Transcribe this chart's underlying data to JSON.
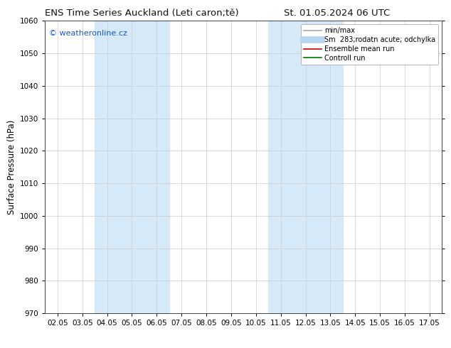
{
  "title_left": "ENS Time Series Auckland (Leti caron;tě)",
  "title_right": "St. 01.05.2024 06 UTC",
  "ylabel": "Surface Pressure (hPa)",
  "ylim": [
    970,
    1060
  ],
  "yticks": [
    970,
    980,
    990,
    1000,
    1010,
    1020,
    1030,
    1040,
    1050,
    1060
  ],
  "xlim_dates": [
    "02.05",
    "03.05",
    "04.05",
    "05.05",
    "06.05",
    "07.05",
    "08.05",
    "09.05",
    "10.05",
    "11.05",
    "12.05",
    "13.05",
    "14.05",
    "15.05",
    "16.05",
    "17.05"
  ],
  "shade_regions": [
    {
      "xstart": 2,
      "xend": 4,
      "color": "#d6e9f8"
    },
    {
      "xstart": 9,
      "xend": 11,
      "color": "#d6e9f8"
    }
  ],
  "watermark_text": "© weatheronline.cz",
  "watermark_color": "#1a55cc",
  "legend_entries": [
    {
      "label": "min/max",
      "color": "#aaaaaa",
      "lw": 1.2,
      "ls": "-"
    },
    {
      "label": "Sm  283;rodatn acute; odchylka",
      "color": "#b8d4ee",
      "lw": 7,
      "ls": "-"
    },
    {
      "label": "Ensemble mean run",
      "color": "#cc0000",
      "lw": 1.2,
      "ls": "-"
    },
    {
      "label": "Controll run",
      "color": "#007700",
      "lw": 1.2,
      "ls": "-"
    }
  ],
  "bg_color": "#ffffff",
  "grid_color": "#cccccc",
  "title_fontsize": 9.5,
  "tick_fontsize": 7.5,
  "ylabel_fontsize": 8.5,
  "watermark_fontsize": 8,
  "legend_fontsize": 7
}
